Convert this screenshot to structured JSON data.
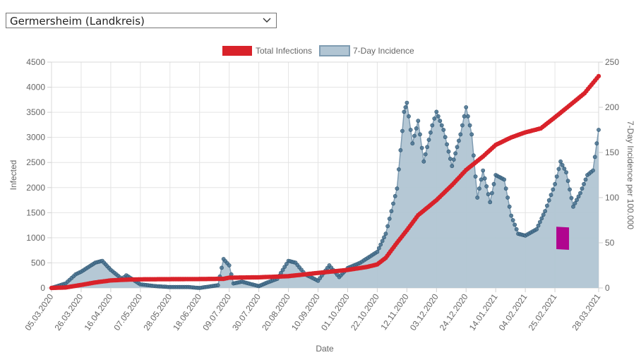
{
  "region_select": {
    "value": "Germersheim (Landkreis)"
  },
  "chart_data": {
    "type": "line",
    "legend": [
      {
        "name": "Total Infections",
        "color": "#d9222a"
      },
      {
        "name": "7-Day Incidence",
        "color": "#b1c5d3"
      }
    ],
    "xlabel": "Date",
    "ylabel_left": "Infected",
    "ylabel_right": "7-Day Incidence per 100.000",
    "ylim_left": [
      0,
      4500
    ],
    "ylim_right": [
      0,
      250
    ],
    "y_ticks_left": [
      "0",
      "500",
      "1000",
      "1500",
      "2000",
      "2500",
      "3000",
      "3500",
      "4000",
      "4500"
    ],
    "y_ticks_right": [
      "0",
      "50",
      "100",
      "150",
      "200",
      "250"
    ],
    "x_tick_labels": [
      "05.03.2020",
      "26.03.2020",
      "16.04.2020",
      "07.05.2020",
      "28.05.2020",
      "18.06.2020",
      "09.07.2020",
      "30.07.2020",
      "20.08.2020",
      "10.09.2020",
      "01.10.2020",
      "22.10.2020",
      "12.11.2020",
      "03.12.2020",
      "24.12.2020",
      "14.01.2021",
      "04.02.2021",
      "25.02.2021",
      "28.03.2021"
    ],
    "series": [
      {
        "name": "Total Infections",
        "axis": "left",
        "points": [
          [
            "05.03.2020",
            0
          ],
          [
            "15.03.2020",
            10
          ],
          [
            "26.03.2020",
            60
          ],
          [
            "05.04.2020",
            110
          ],
          [
            "16.04.2020",
            150
          ],
          [
            "27.04.2020",
            165
          ],
          [
            "07.05.2020",
            172
          ],
          [
            "28.05.2020",
            175
          ],
          [
            "18.06.2020",
            178
          ],
          [
            "05.07.2020",
            182
          ],
          [
            "09.07.2020",
            205
          ],
          [
            "30.07.2020",
            212
          ],
          [
            "20.08.2020",
            235
          ],
          [
            "10.09.2020",
            300
          ],
          [
            "01.10.2020",
            360
          ],
          [
            "15.10.2020",
            420
          ],
          [
            "22.10.2020",
            470
          ],
          [
            "28.10.2020",
            600
          ],
          [
            "05.11.2020",
            900
          ],
          [
            "12.11.2020",
            1150
          ],
          [
            "20.11.2020",
            1450
          ],
          [
            "03.12.2020",
            1750
          ],
          [
            "14.12.2020",
            2050
          ],
          [
            "24.12.2020",
            2350
          ],
          [
            "05.01.2021",
            2620
          ],
          [
            "14.01.2021",
            2850
          ],
          [
            "25.01.2021",
            3000
          ],
          [
            "04.02.2021",
            3100
          ],
          [
            "15.02.2021",
            3180
          ],
          [
            "25.02.2021",
            3400
          ],
          [
            "08.03.2021",
            3650
          ],
          [
            "18.03.2021",
            3880
          ],
          [
            "28.03.2021",
            4220
          ]
        ]
      },
      {
        "name": "7-Day Incidence",
        "axis": "right",
        "points": [
          [
            "05.03.2020",
            0
          ],
          [
            "15.03.2020",
            5
          ],
          [
            "22.03.2020",
            15
          ],
          [
            "26.03.2020",
            18
          ],
          [
            "05.04.2020",
            28
          ],
          [
            "10.04.2020",
            30
          ],
          [
            "16.04.2020",
            20
          ],
          [
            "24.04.2020",
            10
          ],
          [
            "27.04.2020",
            14
          ],
          [
            "07.05.2020",
            4
          ],
          [
            "18.05.2020",
            2
          ],
          [
            "28.05.2020",
            1
          ],
          [
            "10.06.2020",
            1
          ],
          [
            "18.06.2020",
            0
          ],
          [
            "01.07.2020",
            3
          ],
          [
            "05.07.2020",
            32
          ],
          [
            "09.07.2020",
            25
          ],
          [
            "12.07.2020",
            5
          ],
          [
            "18.07.2020",
            7
          ],
          [
            "30.07.2020",
            2
          ],
          [
            "05.08.2020",
            6
          ],
          [
            "12.08.2020",
            10
          ],
          [
            "20.08.2020",
            30
          ],
          [
            "25.08.2020",
            28
          ],
          [
            "01.09.2020",
            15
          ],
          [
            "10.09.2020",
            8
          ],
          [
            "18.09.2020",
            25
          ],
          [
            "25.09.2020",
            12
          ],
          [
            "01.10.2020",
            22
          ],
          [
            "10.10.2020",
            28
          ],
          [
            "22.10.2020",
            40
          ],
          [
            "28.10.2020",
            60
          ],
          [
            "05.11.2020",
            110
          ],
          [
            "10.11.2020",
            195
          ],
          [
            "12.11.2020",
            205
          ],
          [
            "16.11.2020",
            160
          ],
          [
            "20.11.2020",
            185
          ],
          [
            "24.11.2020",
            140
          ],
          [
            "30.11.2020",
            180
          ],
          [
            "03.12.2020",
            195
          ],
          [
            "08.12.2020",
            175
          ],
          [
            "14.12.2020",
            135
          ],
          [
            "20.12.2020",
            170
          ],
          [
            "24.12.2020",
            200
          ],
          [
            "28.12.2020",
            170
          ],
          [
            "01.01.2021",
            100
          ],
          [
            "05.01.2021",
            130
          ],
          [
            "10.01.2021",
            95
          ],
          [
            "14.01.2021",
            125
          ],
          [
            "20.01.2021",
            120
          ],
          [
            "25.01.2021",
            80
          ],
          [
            "30.01.2021",
            60
          ],
          [
            "04.02.2021",
            58
          ],
          [
            "12.02.2021",
            65
          ],
          [
            "18.02.2021",
            85
          ],
          [
            "25.02.2021",
            115
          ],
          [
            "01.03.2021",
            140
          ],
          [
            "05.03.2021",
            128
          ],
          [
            "10.03.2021",
            90
          ],
          [
            "15.03.2021",
            105
          ],
          [
            "20.03.2021",
            125
          ],
          [
            "24.03.2021",
            130
          ],
          [
            "28.03.2021",
            175
          ]
        ]
      }
    ],
    "annotations": [
      {
        "type": "highlight",
        "color": "#b0058f",
        "from": "26.02.2021",
        "to": "07.03.2021",
        "y_range_left": [
          760,
          1220
        ]
      }
    ]
  }
}
